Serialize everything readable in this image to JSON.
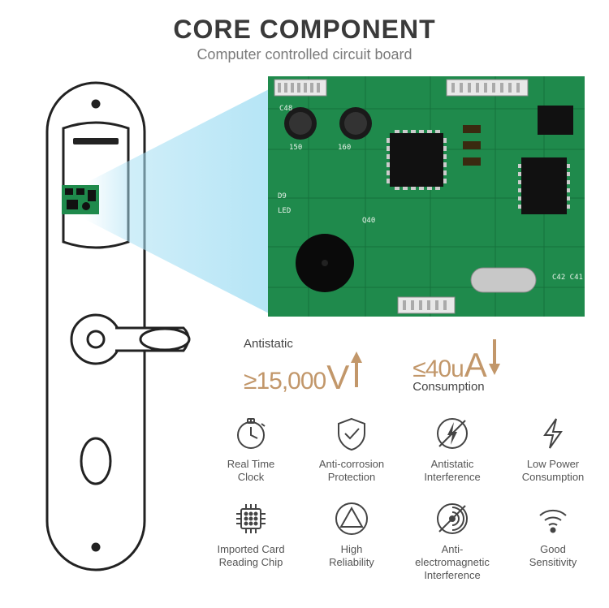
{
  "header": {
    "title": "CORE COMPONENT",
    "subtitle": "Computer controlled circuit board"
  },
  "pcb": {
    "base_color": "#1f8a4c",
    "dark_color": "#0d5a2e",
    "black": "#111111",
    "silver": "#cfd3d6",
    "white_silk": "#e8f3ea"
  },
  "stats": [
    {
      "top_label": "Antistatic",
      "symbol": "≥",
      "value": "15,000",
      "unit": "V",
      "sub_label": "",
      "arrow_dir": "up",
      "accent": "#c2976a"
    },
    {
      "top_label": "",
      "symbol": "≤",
      "value": "40u",
      "unit": "A",
      "sub_label": "Consumption",
      "arrow_dir": "down",
      "accent": "#c2976a"
    }
  ],
  "features": [
    {
      "icon": "clock-icon",
      "label": "Real Time\nClock"
    },
    {
      "icon": "shield-icon",
      "label": "Anti-corrosion\nProtection"
    },
    {
      "icon": "antistatic-icon",
      "label": "Antistatic\nInterference"
    },
    {
      "icon": "bolt-icon",
      "label": "Low Power\nConsumption"
    },
    {
      "icon": "chip-icon",
      "label": "Imported Card\nReading Chip"
    },
    {
      "icon": "triangle-icon",
      "label": "High\nReliability"
    },
    {
      "icon": "emi-icon",
      "label": "Anti-electromagnetic\nInterference"
    },
    {
      "icon": "wifi-icon",
      "label": "Good\nSensitivity"
    }
  ],
  "colors": {
    "title": "#3a3a3a",
    "subtitle": "#7a7a7a",
    "icon": "#444444",
    "label": "#555555",
    "zoom": "#a8e0f4"
  }
}
